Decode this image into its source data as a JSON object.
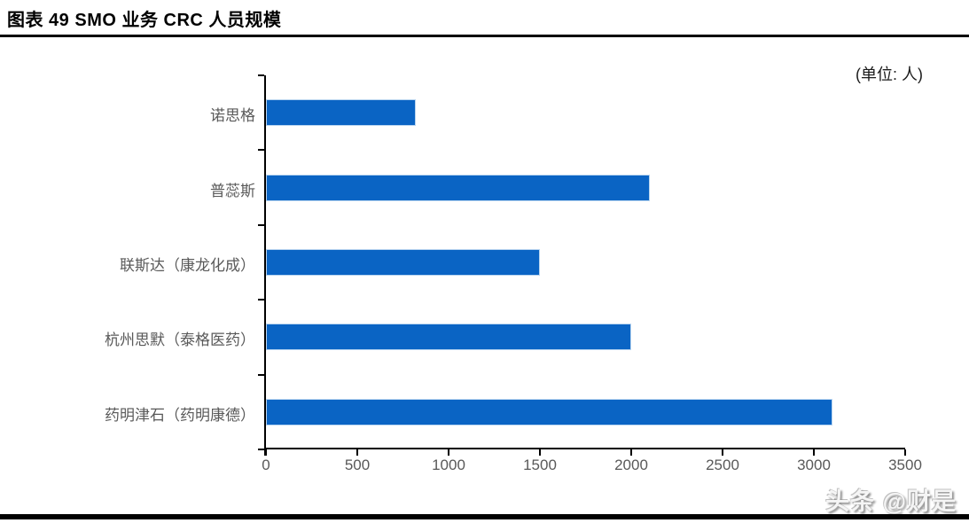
{
  "page": {
    "watermark": "头条 @财是"
  },
  "chart_data": {
    "type": "bar",
    "orientation": "horizontal",
    "title": "图表 49 SMO 业务 CRC 人员规模",
    "unit_label": "(单位: 人)",
    "categories": [
      "诺思格",
      "普蕊斯",
      "联斯达（康龙化成）",
      "杭州思默（泰格医药）",
      "药明津石（药明康德）"
    ],
    "values": [
      820,
      2100,
      1500,
      2000,
      3100
    ],
    "xlabel": "",
    "ylabel": "",
    "xlim": [
      0,
      3500
    ],
    "x_ticks": [
      0,
      500,
      1000,
      1500,
      2000,
      2500,
      3000,
      3500
    ],
    "grid": false,
    "legend_position": "none",
    "colors": {
      "bar": "#0a64c4",
      "bar_edge": "#b9d5f0",
      "axis": "#000000",
      "tick_label": "#595959",
      "category_label": "#595959",
      "title": "#000000"
    }
  }
}
